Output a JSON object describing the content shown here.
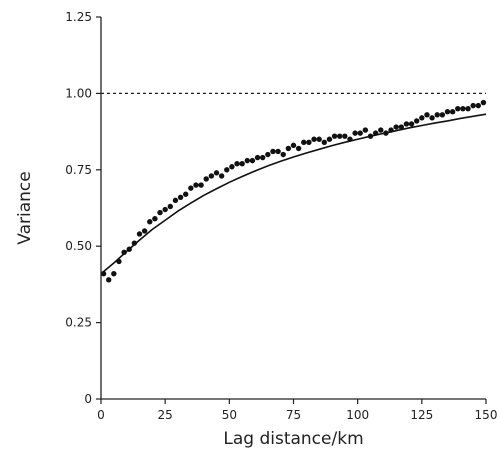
{
  "chart_data": {
    "type": "scatter",
    "title": "",
    "xlabel": "Lag distance/km",
    "ylabel": "Variance",
    "xlim": [
      0,
      150
    ],
    "ylim": [
      0,
      1.25
    ],
    "x_ticks": [
      "0",
      "25",
      "50",
      "75",
      "100",
      "125",
      "150"
    ],
    "y_ticks": [
      "0",
      "0.25",
      "0.50",
      "0.75",
      "1.00",
      "1.25"
    ],
    "grid": false,
    "legend": "none",
    "reference_line": {
      "y": 1.0,
      "style": "dashed"
    },
    "series": [
      {
        "type": "scatter",
        "marker": "filled-circle",
        "color": "#111111",
        "x": [
          1,
          3,
          5,
          7,
          9,
          11,
          13,
          15,
          17,
          19,
          21,
          23,
          25,
          27,
          29,
          31,
          33,
          35,
          37,
          39,
          41,
          43,
          45,
          47,
          49,
          51,
          53,
          55,
          57,
          59,
          61,
          63,
          65,
          67,
          69,
          71,
          73,
          75,
          77,
          79,
          81,
          83,
          85,
          87,
          89,
          91,
          93,
          95,
          97,
          99,
          101,
          103,
          105,
          107,
          109,
          111,
          113,
          115,
          117,
          119,
          121,
          123,
          125,
          127,
          129,
          131,
          133,
          135,
          137,
          139,
          141,
          143,
          145,
          147,
          149
        ],
        "y": [
          0.41,
          0.39,
          0.41,
          0.45,
          0.48,
          0.49,
          0.51,
          0.54,
          0.55,
          0.58,
          0.59,
          0.61,
          0.62,
          0.63,
          0.65,
          0.66,
          0.67,
          0.69,
          0.7,
          0.7,
          0.72,
          0.73,
          0.74,
          0.73,
          0.75,
          0.76,
          0.77,
          0.77,
          0.78,
          0.78,
          0.79,
          0.79,
          0.8,
          0.81,
          0.81,
          0.8,
          0.82,
          0.83,
          0.82,
          0.84,
          0.84,
          0.85,
          0.85,
          0.84,
          0.85,
          0.86,
          0.86,
          0.86,
          0.85,
          0.87,
          0.87,
          0.88,
          0.86,
          0.87,
          0.88,
          0.87,
          0.88,
          0.89,
          0.89,
          0.9,
          0.9,
          0.91,
          0.92,
          0.93,
          0.92,
          0.93,
          0.93,
          0.94,
          0.94,
          0.95,
          0.95,
          0.95,
          0.96,
          0.96,
          0.97
        ]
      },
      {
        "type": "line",
        "style": "solid",
        "color": "#111111",
        "x": [
          0,
          5,
          10,
          15,
          20,
          25,
          30,
          35,
          40,
          45,
          50,
          55,
          60,
          65,
          70,
          75,
          80,
          85,
          90,
          95,
          100,
          105,
          110,
          115,
          120,
          125,
          130,
          135,
          140,
          145,
          150
        ],
        "y": [
          0.41,
          0.445,
          0.483,
          0.52,
          0.555,
          0.585,
          0.615,
          0.641,
          0.666,
          0.688,
          0.709,
          0.728,
          0.746,
          0.763,
          0.778,
          0.792,
          0.805,
          0.817,
          0.829,
          0.84,
          0.85,
          0.86,
          0.869,
          0.878,
          0.887,
          0.895,
          0.903,
          0.91,
          0.918,
          0.925,
          0.932
        ]
      }
    ]
  }
}
